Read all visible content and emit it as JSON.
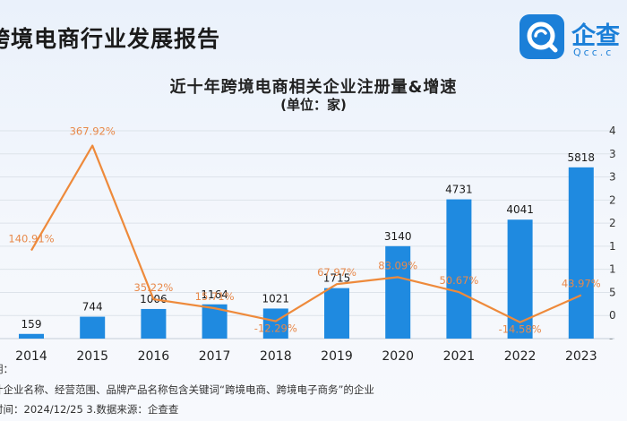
{
  "report_title": "跨境电商行业发展报告",
  "logo": {
    "name": "企查",
    "sub": "Qcc.c",
    "icon": "qcc-logo-icon",
    "color": "#1b7fd8"
  },
  "colors": {
    "bar": "#1f8ae0",
    "line": "#ee8a3b",
    "growth_label": "#e8894a",
    "axis": "#cfd6df",
    "grid": "#dde3ea"
  },
  "chart_data": {
    "type": "bar+line",
    "title": "近十年跨境电商相关企业注册量&增速",
    "subtitle": "(单位：家)",
    "categories": [
      "2014",
      "2015",
      "2016",
      "2017",
      "2018",
      "2019",
      "2020",
      "2021",
      "2022",
      "2023"
    ],
    "series": [
      {
        "type": "bar",
        "values": [
          159,
          744,
          1006,
          1164,
          1021,
          1715,
          3140,
          4731,
          4041,
          5818
        ],
        "labels": [
          "159",
          "744",
          "1006",
          "1164",
          "1021",
          "1715",
          "3140",
          "4731",
          "4041",
          "5818"
        ]
      },
      {
        "type": "line",
        "values": [
          140.91,
          367.92,
          35.22,
          15.71,
          -12.29,
          67.97,
          83.09,
          50.67,
          -14.58,
          43.97
        ],
        "labels": [
          "140.91%",
          "367.92%",
          "35.22%",
          "15.71%",
          "-12.29%",
          "67.97%",
          "83.09%",
          "50.67%",
          "-14.58%",
          "43.97%"
        ]
      }
    ],
    "left_ylim": [
      0,
      7000
    ],
    "right_ylim": [
      -50,
      400
    ],
    "right_ticks": [
      "4",
      "3",
      "3",
      "2",
      "2",
      "1",
      "1",
      "5",
      "0",
      "-"
    ],
    "grid": true
  },
  "footnotes": [
    "明：",
    "计企业名称、经营范围、品牌产品名称包含关键词“跨境电商、跨境电子商务”的企业",
    "时间：2024/12/25   3.数据来源：企查查"
  ]
}
